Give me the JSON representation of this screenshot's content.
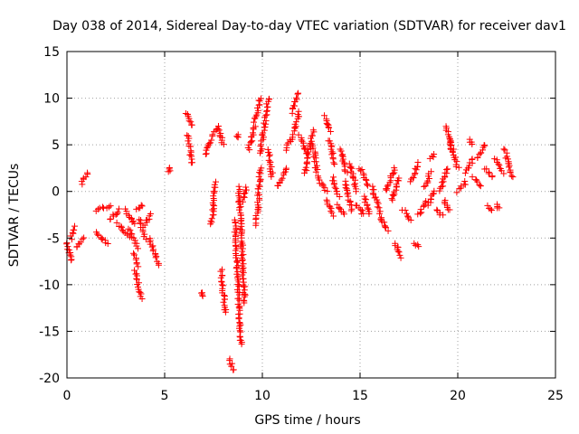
{
  "chart_data": {
    "type": "scatter",
    "title": "Day 038 of 2014, Sidereal Day-to-day VTEC variation (SDTVAR) for receiver dav1",
    "xlabel": "GPS time / hours",
    "ylabel": "SDTVAR / TECUs",
    "xlim": [
      0,
      25
    ],
    "ylim": [
      -20,
      15
    ],
    "xticks": [
      0,
      5,
      10,
      15,
      20,
      25
    ],
    "yticks": [
      -20,
      -15,
      -10,
      -5,
      0,
      5,
      10,
      15
    ],
    "xtick_labels": [
      "0",
      "5",
      "10",
      "15",
      "20",
      "25"
    ],
    "ytick_labels": [
      "-20",
      "-15",
      "-10",
      "-5",
      "0",
      "5",
      "10",
      "15"
    ],
    "grid": true,
    "marker": "plus",
    "marker_color": "#ff0000",
    "series": [
      {
        "name": "SDTVAR",
        "segments": [
          {
            "x0": 0.0,
            "y0": -5.5,
            "x1": 0.25,
            "y1": -7.5
          },
          {
            "x0": 0.2,
            "y0": -5.0,
            "x1": 0.4,
            "y1": -3.8
          },
          {
            "x0": 0.5,
            "y0": -6.0,
            "x1": 0.85,
            "y1": -5.0
          },
          {
            "x0": 0.75,
            "y0": 0.8,
            "x1": 1.05,
            "y1": 2.0
          },
          {
            "x0": 1.5,
            "y0": -2.0,
            "x1": 2.2,
            "y1": -1.5
          },
          {
            "x0": 1.5,
            "y0": -4.5,
            "x1": 2.1,
            "y1": -5.5
          },
          {
            "x0": 2.2,
            "y0": -3.0,
            "x1": 2.7,
            "y1": -2.0
          },
          {
            "x0": 2.6,
            "y0": -3.5,
            "x1": 3.2,
            "y1": -5.0
          },
          {
            "x0": 3.0,
            "y0": -2.0,
            "x1": 3.5,
            "y1": -3.5
          },
          {
            "x0": 3.2,
            "y0": -4.0,
            "x1": 3.6,
            "y1": -6.0
          },
          {
            "x0": 3.4,
            "y0": -6.5,
            "x1": 3.6,
            "y1": -8.0
          },
          {
            "x0": 3.5,
            "y0": -8.5,
            "x1": 3.8,
            "y1": -11.5
          },
          {
            "x0": 3.6,
            "y0": -2.0,
            "x1": 3.9,
            "y1": -1.5
          },
          {
            "x0": 3.7,
            "y0": -3.0,
            "x1": 4.0,
            "y1": -5.0
          },
          {
            "x0": 4.0,
            "y0": -3.5,
            "x1": 4.3,
            "y1": -2.5
          },
          {
            "x0": 4.2,
            "y0": -5.0,
            "x1": 4.7,
            "y1": -7.8
          },
          {
            "x0": 5.2,
            "y0": 2.0,
            "x1": 5.3,
            "y1": 2.5
          },
          {
            "x0": 6.1,
            "y0": 8.5,
            "x1": 6.4,
            "y1": 7.0
          },
          {
            "x0": 6.2,
            "y0": 6.0,
            "x1": 6.4,
            "y1": 3.0
          },
          {
            "x0": 6.9,
            "y0": -10.8,
            "x1": 7.0,
            "y1": -11.3
          },
          {
            "x0": 7.1,
            "y0": 4.0,
            "x1": 7.4,
            "y1": 5.5
          },
          {
            "x0": 7.4,
            "y0": 6.0,
            "x1": 7.8,
            "y1": 7.0
          },
          {
            "x0": 7.8,
            "y0": 6.5,
            "x1": 8.0,
            "y1": 5.0
          },
          {
            "x0": 7.4,
            "y0": -3.5,
            "x1": 7.6,
            "y1": 1.0
          },
          {
            "x0": 7.9,
            "y0": -8.5,
            "x1": 8.1,
            "y1": -13.0
          },
          {
            "x0": 8.3,
            "y0": -18.0,
            "x1": 8.5,
            "y1": -19.2
          },
          {
            "x0": 8.6,
            "y0": -3.0,
            "x1": 8.9,
            "y1": -16.5
          },
          {
            "x0": 8.7,
            "y0": 5.8,
            "x1": 8.8,
            "y1": 6.0
          },
          {
            "x0": 8.8,
            "y0": 0.5,
            "x1": 9.1,
            "y1": -12.0
          },
          {
            "x0": 9.0,
            "y0": -1.0,
            "x1": 9.2,
            "y1": 0.5
          },
          {
            "x0": 9.3,
            "y0": 4.5,
            "x1": 9.6,
            "y1": 7.0
          },
          {
            "x0": 9.6,
            "y0": 7.5,
            "x1": 9.9,
            "y1": 10.0
          },
          {
            "x0": 9.7,
            "y0": -3.5,
            "x1": 9.9,
            "y1": 2.5
          },
          {
            "x0": 9.9,
            "y0": 4.0,
            "x1": 10.3,
            "y1": 10.0
          },
          {
            "x0": 10.3,
            "y0": 4.5,
            "x1": 10.5,
            "y1": 1.5
          },
          {
            "x0": 10.8,
            "y0": 0.5,
            "x1": 11.2,
            "y1": 2.5
          },
          {
            "x0": 11.2,
            "y0": 4.5,
            "x1": 11.6,
            "y1": 6.0
          },
          {
            "x0": 11.5,
            "y0": 8.5,
            "x1": 11.8,
            "y1": 10.5
          },
          {
            "x0": 11.6,
            "y0": 6.5,
            "x1": 11.9,
            "y1": 8.5
          },
          {
            "x0": 11.9,
            "y0": 6.0,
            "x1": 12.3,
            "y1": 4.0
          },
          {
            "x0": 12.2,
            "y0": 2.0,
            "x1": 12.6,
            "y1": 6.5
          },
          {
            "x0": 12.6,
            "y0": 5.0,
            "x1": 12.8,
            "y1": 2.0
          },
          {
            "x0": 12.8,
            "y0": 1.5,
            "x1": 13.3,
            "y1": 0.0
          },
          {
            "x0": 13.2,
            "y0": 8.0,
            "x1": 13.5,
            "y1": 6.5
          },
          {
            "x0": 13.4,
            "y0": 5.5,
            "x1": 13.7,
            "y1": 3.0
          },
          {
            "x0": 13.3,
            "y0": -1.0,
            "x1": 13.6,
            "y1": -2.5
          },
          {
            "x0": 13.6,
            "y0": 1.5,
            "x1": 13.9,
            "y1": -0.5
          },
          {
            "x0": 13.8,
            "y0": -1.5,
            "x1": 14.2,
            "y1": -2.5
          },
          {
            "x0": 14.0,
            "y0": 4.5,
            "x1": 14.3,
            "y1": 2.0
          },
          {
            "x0": 14.2,
            "y0": 1.0,
            "x1": 14.6,
            "y1": -2.0
          },
          {
            "x0": 14.5,
            "y0": 3.0,
            "x1": 14.8,
            "y1": 0.0
          },
          {
            "x0": 14.8,
            "y0": -1.5,
            "x1": 15.2,
            "y1": -2.5
          },
          {
            "x0": 15.0,
            "y0": 2.5,
            "x1": 15.4,
            "y1": 0.5
          },
          {
            "x0": 15.2,
            "y0": -0.5,
            "x1": 15.5,
            "y1": -2.5
          },
          {
            "x0": 15.6,
            "y0": 0.5,
            "x1": 16.0,
            "y1": -2.0
          },
          {
            "x0": 16.0,
            "y0": -2.5,
            "x1": 16.4,
            "y1": -4.2
          },
          {
            "x0": 16.3,
            "y0": 0.0,
            "x1": 16.8,
            "y1": 2.5
          },
          {
            "x0": 16.6,
            "y0": -1.0,
            "x1": 17.0,
            "y1": 1.5
          },
          {
            "x0": 16.8,
            "y0": -5.5,
            "x1": 17.1,
            "y1": -7.0
          },
          {
            "x0": 17.2,
            "y0": -2.0,
            "x1": 17.6,
            "y1": -3.0
          },
          {
            "x0": 17.6,
            "y0": 1.0,
            "x1": 18.0,
            "y1": 3.0
          },
          {
            "x0": 17.8,
            "y0": -5.5,
            "x1": 18.0,
            "y1": -6.0
          },
          {
            "x0": 18.0,
            "y0": -2.5,
            "x1": 18.4,
            "y1": -1.0
          },
          {
            "x0": 18.3,
            "y0": 0.5,
            "x1": 18.6,
            "y1": 2.0
          },
          {
            "x0": 18.5,
            "y0": -1.5,
            "x1": 18.8,
            "y1": 0.0
          },
          {
            "x0": 18.6,
            "y0": 3.5,
            "x1": 18.8,
            "y1": 4.0
          },
          {
            "x0": 18.9,
            "y0": -2.0,
            "x1": 19.2,
            "y1": -2.5
          },
          {
            "x0": 19.1,
            "y0": 0.0,
            "x1": 19.5,
            "y1": 2.5
          },
          {
            "x0": 19.4,
            "y0": 7.0,
            "x1": 19.7,
            "y1": 4.5
          },
          {
            "x0": 19.6,
            "y0": 5.5,
            "x1": 20.0,
            "y1": 2.5
          },
          {
            "x0": 19.3,
            "y0": -1.0,
            "x1": 19.6,
            "y1": -2.0
          },
          {
            "x0": 20.0,
            "y0": 0.0,
            "x1": 20.4,
            "y1": 1.0
          },
          {
            "x0": 20.4,
            "y0": 2.0,
            "x1": 20.8,
            "y1": 3.5
          },
          {
            "x0": 20.6,
            "y0": 5.5,
            "x1": 20.7,
            "y1": 5.0
          },
          {
            "x0": 20.8,
            "y0": 1.5,
            "x1": 21.2,
            "y1": 0.5
          },
          {
            "x0": 21.0,
            "y0": 3.5,
            "x1": 21.4,
            "y1": 5.0
          },
          {
            "x0": 21.4,
            "y0": 2.5,
            "x1": 21.8,
            "y1": 1.5
          },
          {
            "x0": 21.5,
            "y0": -1.5,
            "x1": 21.7,
            "y1": -2.0
          },
          {
            "x0": 21.9,
            "y0": 3.5,
            "x1": 22.3,
            "y1": 2.0
          },
          {
            "x0": 22.0,
            "y0": -1.5,
            "x1": 22.1,
            "y1": -1.8
          },
          {
            "x0": 22.4,
            "y0": 4.5,
            "x1": 22.8,
            "y1": 1.5
          }
        ]
      }
    ]
  }
}
